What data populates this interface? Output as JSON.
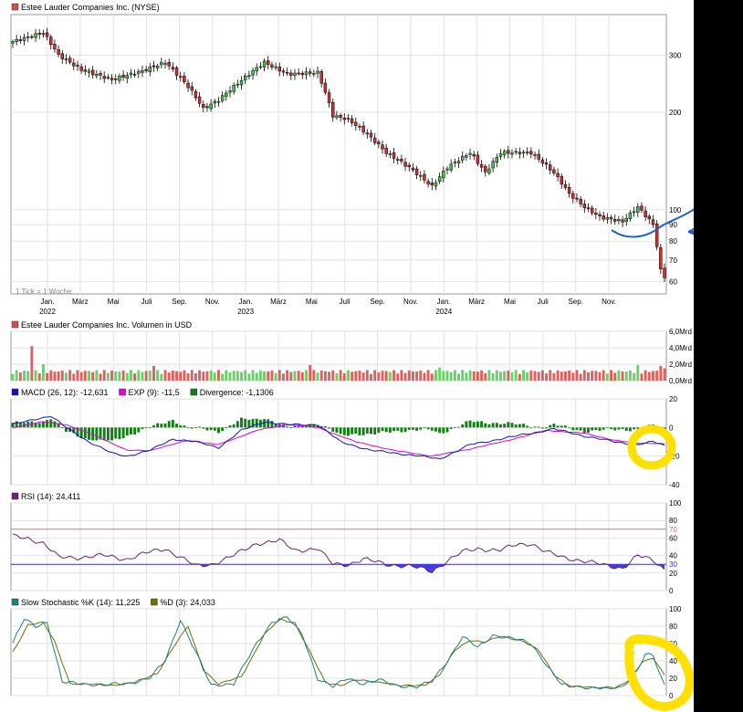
{
  "chart_data": [
    {
      "type": "candlestick",
      "legend": "Estee Lauder Companies Inc. (NYSE)",
      "footnote": "1 Tick = 1 Woche",
      "yscale": "log",
      "ylim": [
        55,
        400
      ],
      "yticks": [
        60,
        70,
        80,
        90,
        100,
        200,
        300
      ],
      "xticks": [
        {
          "label": "Jan.",
          "year": "2022"
        },
        {
          "label": "März"
        },
        {
          "label": "Mai"
        },
        {
          "label": "Juli"
        },
        {
          "label": "Sep."
        },
        {
          "label": "Nov."
        },
        {
          "label": "Jan.",
          "year": "2023"
        },
        {
          "label": "März"
        },
        {
          "label": "Mai"
        },
        {
          "label": "Juli"
        },
        {
          "label": "Sep."
        },
        {
          "label": "Nov."
        },
        {
          "label": "Jan.",
          "year": "2024"
        },
        {
          "label": "März"
        },
        {
          "label": "Mai"
        },
        {
          "label": "Juli"
        },
        {
          "label": "Sep."
        },
        {
          "label": "Nov."
        }
      ],
      "close_anchors": [
        [
          0,
          330
        ],
        [
          8,
          352
        ],
        [
          12,
          300
        ],
        [
          18,
          270
        ],
        [
          26,
          252
        ],
        [
          34,
          268
        ],
        [
          40,
          285
        ],
        [
          46,
          240
        ],
        [
          50,
          205
        ],
        [
          54,
          218
        ],
        [
          62,
          262
        ],
        [
          66,
          285
        ],
        [
          72,
          262
        ],
        [
          80,
          265
        ],
        [
          84,
          195
        ],
        [
          88,
          190
        ],
        [
          92,
          175
        ],
        [
          98,
          150
        ],
        [
          104,
          135
        ],
        [
          110,
          118
        ],
        [
          114,
          135
        ],
        [
          120,
          150
        ],
        [
          124,
          130
        ],
        [
          128,
          150
        ],
        [
          136,
          150
        ],
        [
          142,
          130
        ],
        [
          146,
          112
        ],
        [
          150,
          102
        ],
        [
          154,
          95
        ],
        [
          160,
          92
        ],
        [
          164,
          102
        ],
        [
          166,
          96
        ],
        [
          168,
          90
        ],
        [
          170,
          65
        ],
        [
          171,
          62
        ]
      ]
    },
    {
      "type": "bar",
      "legend": "Estee Lauder Companies Inc. Volumen in USD",
      "yticks": [
        "0,0Mrd",
        "2,0Mrd",
        "4,0Mrd",
        "6,0Mrd"
      ],
      "ylim": [
        0,
        6
      ],
      "base_volume_bn": 1.0,
      "spikes": [
        [
          5,
          4.2
        ],
        [
          8,
          2.0
        ],
        [
          37,
          1.8
        ],
        [
          78,
          1.9
        ],
        [
          112,
          1.6
        ],
        [
          164,
          1.9
        ],
        [
          170,
          1.8
        ],
        [
          171,
          1.5
        ]
      ]
    },
    {
      "type": "line",
      "legend": [
        {
          "text": "MACD (26, 12): -12,631",
          "color": "#1010c8"
        },
        {
          "text": "EXP (9): -11,5",
          "color": "#e000e0"
        },
        {
          "text": "Divergence: -1,1306",
          "color": "#108010"
        }
      ],
      "yticks": [
        20,
        0,
        -20,
        -40
      ],
      "ylim": [
        -40,
        20
      ],
      "macd_anchors": [
        [
          0,
          2
        ],
        [
          6,
          6
        ],
        [
          10,
          8
        ],
        [
          14,
          0
        ],
        [
          20,
          -10
        ],
        [
          26,
          -18
        ],
        [
          30,
          -20
        ],
        [
          36,
          -16
        ],
        [
          42,
          -8
        ],
        [
          48,
          -10
        ],
        [
          54,
          -14
        ],
        [
          60,
          -2
        ],
        [
          66,
          4
        ],
        [
          72,
          2
        ],
        [
          80,
          2
        ],
        [
          86,
          -10
        ],
        [
          94,
          -16
        ],
        [
          104,
          -19
        ],
        [
          112,
          -22
        ],
        [
          120,
          -12
        ],
        [
          128,
          -8
        ],
        [
          136,
          -4
        ],
        [
          142,
          -1
        ],
        [
          150,
          -6
        ],
        [
          158,
          -10
        ],
        [
          164,
          -12
        ],
        [
          168,
          -10
        ],
        [
          171,
          -12.6
        ]
      ],
      "signal_anchors": [
        [
          0,
          0
        ],
        [
          8,
          4
        ],
        [
          14,
          2
        ],
        [
          22,
          -6
        ],
        [
          30,
          -16
        ],
        [
          36,
          -16
        ],
        [
          46,
          -9
        ],
        [
          54,
          -12
        ],
        [
          64,
          -2
        ],
        [
          72,
          2
        ],
        [
          80,
          0
        ],
        [
          90,
          -10
        ],
        [
          100,
          -16
        ],
        [
          110,
          -20
        ],
        [
          120,
          -15
        ],
        [
          130,
          -9
        ],
        [
          140,
          -2
        ],
        [
          150,
          -4
        ],
        [
          158,
          -9
        ],
        [
          164,
          -11
        ],
        [
          168,
          -11
        ],
        [
          171,
          -11.5
        ]
      ]
    },
    {
      "type": "line",
      "legend": "RSI (14): 24,411",
      "yticks": [
        0,
        20,
        30,
        40,
        60,
        70,
        80,
        100
      ],
      "ylim": [
        0,
        100
      ],
      "upper_band": 70,
      "lower_band": 30,
      "rsi_anchors": [
        [
          0,
          62
        ],
        [
          4,
          60
        ],
        [
          8,
          54
        ],
        [
          12,
          38
        ],
        [
          18,
          38
        ],
        [
          24,
          40
        ],
        [
          30,
          36
        ],
        [
          36,
          44
        ],
        [
          40,
          48
        ],
        [
          44,
          38
        ],
        [
          48,
          28
        ],
        [
          52,
          30
        ],
        [
          58,
          40
        ],
        [
          64,
          54
        ],
        [
          70,
          57
        ],
        [
          74,
          46
        ],
        [
          80,
          48
        ],
        [
          84,
          30
        ],
        [
          88,
          30
        ],
        [
          92,
          36
        ],
        [
          98,
          30
        ],
        [
          104,
          28
        ],
        [
          110,
          22
        ],
        [
          114,
          34
        ],
        [
          118,
          44
        ],
        [
          122,
          48
        ],
        [
          128,
          46
        ],
        [
          132,
          52
        ],
        [
          136,
          54
        ],
        [
          140,
          44
        ],
        [
          144,
          38
        ],
        [
          150,
          34
        ],
        [
          156,
          28
        ],
        [
          160,
          26
        ],
        [
          164,
          40
        ],
        [
          168,
          34
        ],
        [
          170,
          28
        ],
        [
          171,
          24.4
        ]
      ]
    },
    {
      "type": "line",
      "legend": [
        {
          "text": "Slow Stochastic %K (14): 11,225",
          "color": "#1a8080"
        },
        {
          "text": "%D (3): 24,033",
          "color": "#707000"
        }
      ],
      "yticks": [
        0,
        20,
        40,
        60,
        80,
        100
      ],
      "ylim": [
        0,
        100
      ],
      "k_anchors": [
        [
          0,
          60
        ],
        [
          3,
          88
        ],
        [
          6,
          80
        ],
        [
          9,
          85
        ],
        [
          13,
          15
        ],
        [
          18,
          14
        ],
        [
          24,
          12
        ],
        [
          30,
          14
        ],
        [
          36,
          20
        ],
        [
          40,
          40
        ],
        [
          44,
          88
        ],
        [
          48,
          50
        ],
        [
          52,
          12
        ],
        [
          58,
          14
        ],
        [
          64,
          60
        ],
        [
          68,
          85
        ],
        [
          72,
          90
        ],
        [
          76,
          70
        ],
        [
          80,
          20
        ],
        [
          84,
          10
        ],
        [
          88,
          20
        ],
        [
          92,
          14
        ],
        [
          96,
          18
        ],
        [
          100,
          12
        ],
        [
          106,
          10
        ],
        [
          110,
          16
        ],
        [
          114,
          40
        ],
        [
          118,
          68
        ],
        [
          122,
          55
        ],
        [
          126,
          70
        ],
        [
          132,
          65
        ],
        [
          136,
          60
        ],
        [
          140,
          36
        ],
        [
          144,
          12
        ],
        [
          150,
          10
        ],
        [
          156,
          8
        ],
        [
          160,
          10
        ],
        [
          164,
          30
        ],
        [
          166,
          48
        ],
        [
          168,
          45
        ],
        [
          171,
          11.2
        ]
      ],
      "d_anchors": [
        [
          0,
          50
        ],
        [
          4,
          82
        ],
        [
          8,
          84
        ],
        [
          11,
          62
        ],
        [
          15,
          14
        ],
        [
          20,
          13
        ],
        [
          26,
          12
        ],
        [
          32,
          15
        ],
        [
          38,
          26
        ],
        [
          42,
          55
        ],
        [
          46,
          80
        ],
        [
          50,
          30
        ],
        [
          54,
          13
        ],
        [
          60,
          22
        ],
        [
          66,
          70
        ],
        [
          70,
          88
        ],
        [
          74,
          84
        ],
        [
          78,
          50
        ],
        [
          82,
          15
        ],
        [
          86,
          12
        ],
        [
          90,
          18
        ],
        [
          94,
          16
        ],
        [
          98,
          15
        ],
        [
          102,
          11
        ],
        [
          108,
          12
        ],
        [
          112,
          24
        ],
        [
          116,
          52
        ],
        [
          120,
          64
        ],
        [
          124,
          62
        ],
        [
          128,
          68
        ],
        [
          134,
          63
        ],
        [
          138,
          52
        ],
        [
          142,
          24
        ],
        [
          146,
          11
        ],
        [
          152,
          9
        ],
        [
          158,
          9
        ],
        [
          162,
          18
        ],
        [
          165,
          38
        ],
        [
          168,
          44
        ],
        [
          171,
          24
        ]
      ]
    }
  ]
}
